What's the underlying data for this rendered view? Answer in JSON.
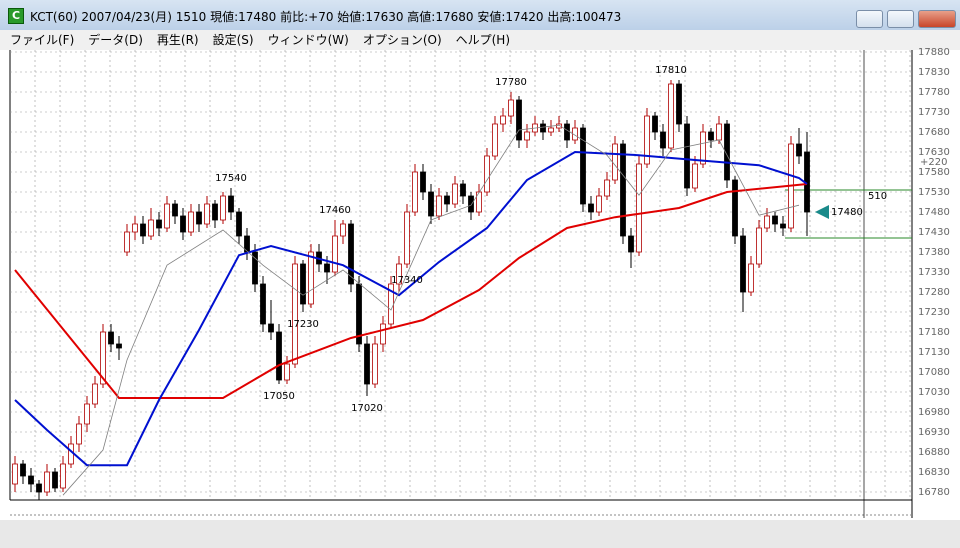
{
  "window": {
    "title": "KCT(60) 2007/04/23(月) 1510 現値:17480 前比:+70 始値:17630 高値:17680 安値:17420 出高:100473",
    "menu": [
      "ファイル(F)",
      "データ(D)",
      "再生(R)",
      "設定(S)",
      "ウィンドウ(W)",
      "オプション(O)",
      "ヘルプ(H)"
    ]
  },
  "chart_data": {
    "type": "candlestick",
    "up_color": "#b00000",
    "down_color": "#000000",
    "candles": [
      [
        16800,
        16870,
        16780,
        16850
      ],
      [
        16850,
        16860,
        16800,
        16820
      ],
      [
        16820,
        16840,
        16780,
        16800
      ],
      [
        16800,
        16810,
        16760,
        16780
      ],
      [
        16780,
        16850,
        16770,
        16830
      ],
      [
        16830,
        16840,
        16780,
        16790
      ],
      [
        16790,
        16870,
        16780,
        16850
      ],
      [
        16850,
        16920,
        16840,
        16900
      ],
      [
        16900,
        16970,
        16880,
        16950
      ],
      [
        16950,
        17020,
        16930,
        17000
      ],
      [
        17000,
        17070,
        16990,
        17050
      ],
      [
        17050,
        17200,
        17040,
        17180
      ],
      [
        17180,
        17200,
        17130,
        17150
      ],
      [
        17150,
        17170,
        17110,
        17140
      ],
      [
        17380,
        17450,
        17370,
        17430
      ],
      [
        17430,
        17470,
        17410,
        17450
      ],
      [
        17450,
        17470,
        17400,
        17420
      ],
      [
        17420,
        17490,
        17410,
        17460
      ],
      [
        17460,
        17480,
        17420,
        17440
      ],
      [
        17440,
        17520,
        17430,
        17500
      ],
      [
        17500,
        17510,
        17450,
        17470
      ],
      [
        17470,
        17490,
        17410,
        17430
      ],
      [
        17430,
        17500,
        17420,
        17480
      ],
      [
        17480,
        17500,
        17430,
        17450
      ],
      [
        17450,
        17520,
        17440,
        17500
      ],
      [
        17500,
        17510,
        17440,
        17460
      ],
      [
        17460,
        17530,
        17450,
        17520
      ],
      [
        17520,
        17540,
        17460,
        17480
      ],
      [
        17480,
        17490,
        17400,
        17420
      ],
      [
        17420,
        17440,
        17360,
        17380
      ],
      [
        17380,
        17400,
        17280,
        17300
      ],
      [
        17300,
        17320,
        17180,
        17200
      ],
      [
        17200,
        17260,
        17160,
        17180
      ],
      [
        17180,
        17200,
        17050,
        17060
      ],
      [
        17060,
        17120,
        17050,
        17100
      ],
      [
        17100,
        17370,
        17090,
        17350
      ],
      [
        17350,
        17360,
        17230,
        17250
      ],
      [
        17250,
        17400,
        17240,
        17380
      ],
      [
        17380,
        17400,
        17330,
        17350
      ],
      [
        17350,
        17370,
        17300,
        17330
      ],
      [
        17330,
        17460,
        17320,
        17420
      ],
      [
        17420,
        17460,
        17400,
        17450
      ],
      [
        17450,
        17460,
        17280,
        17300
      ],
      [
        17300,
        17320,
        17130,
        17150
      ],
      [
        17150,
        17170,
        17020,
        17050
      ],
      [
        17050,
        17170,
        17040,
        17150
      ],
      [
        17150,
        17220,
        17130,
        17200
      ],
      [
        17200,
        17320,
        17190,
        17300
      ],
      [
        17300,
        17370,
        17280,
        17350
      ],
      [
        17350,
        17500,
        17340,
        17480
      ],
      [
        17480,
        17600,
        17470,
        17580
      ],
      [
        17580,
        17600,
        17510,
        17530
      ],
      [
        17530,
        17550,
        17450,
        17470
      ],
      [
        17470,
        17540,
        17460,
        17520
      ],
      [
        17520,
        17530,
        17480,
        17500
      ],
      [
        17500,
        17570,
        17490,
        17550
      ],
      [
        17550,
        17560,
        17500,
        17520
      ],
      [
        17520,
        17530,
        17460,
        17480
      ],
      [
        17480,
        17550,
        17470,
        17530
      ],
      [
        17530,
        17640,
        17520,
        17620
      ],
      [
        17620,
        17720,
        17610,
        17700
      ],
      [
        17700,
        17740,
        17680,
        17720
      ],
      [
        17720,
        17780,
        17700,
        17760
      ],
      [
        17760,
        17770,
        17640,
        17660
      ],
      [
        17660,
        17700,
        17640,
        17680
      ],
      [
        17680,
        17720,
        17670,
        17700
      ],
      [
        17700,
        17710,
        17660,
        17680
      ],
      [
        17680,
        17710,
        17670,
        17690
      ],
      [
        17690,
        17720,
        17680,
        17700
      ],
      [
        17700,
        17710,
        17640,
        17660
      ],
      [
        17660,
        17710,
        17650,
        17690
      ],
      [
        17690,
        17700,
        17480,
        17500
      ],
      [
        17500,
        17520,
        17460,
        17480
      ],
      [
        17480,
        17540,
        17470,
        17520
      ],
      [
        17520,
        17580,
        17510,
        17560
      ],
      [
        17560,
        17670,
        17550,
        17650
      ],
      [
        17650,
        17660,
        17400,
        17420
      ],
      [
        17420,
        17440,
        17340,
        17380
      ],
      [
        17380,
        17620,
        17370,
        17600
      ],
      [
        17600,
        17740,
        17590,
        17720
      ],
      [
        17720,
        17730,
        17660,
        17680
      ],
      [
        17680,
        17700,
        17620,
        17640
      ],
      [
        17640,
        17810,
        17630,
        17800
      ],
      [
        17800,
        17810,
        17680,
        17700
      ],
      [
        17700,
        17720,
        17520,
        17540
      ],
      [
        17540,
        17620,
        17530,
        17600
      ],
      [
        17600,
        17700,
        17590,
        17680
      ],
      [
        17680,
        17690,
        17640,
        17660
      ],
      [
        17660,
        17720,
        17650,
        17700
      ],
      [
        17700,
        17710,
        17540,
        17560
      ],
      [
        17560,
        17570,
        17400,
        17420
      ],
      [
        17420,
        17440,
        17230,
        17280
      ],
      [
        17280,
        17370,
        17270,
        17350
      ],
      [
        17350,
        17460,
        17340,
        17440
      ],
      [
        17440,
        17490,
        17430,
        17470
      ],
      [
        17470,
        17480,
        17430,
        17450
      ],
      [
        17450,
        17470,
        17420,
        17440
      ],
      [
        17440,
        17670,
        17430,
        17650
      ],
      [
        17650,
        17690,
        17600,
        17620
      ],
      [
        17630,
        17680,
        17420,
        17480
      ]
    ],
    "lines": [
      {
        "color": "#e00000",
        "x": [
          0,
          13,
          26,
          33,
          42,
          51,
          58,
          63,
          69,
          75,
          83,
          89,
          99
        ],
        "values": [
          17335,
          17015,
          17015,
          17097,
          17165,
          17210,
          17285,
          17365,
          17440,
          17467,
          17490,
          17530,
          17550
        ]
      },
      {
        "color": "#0010d0",
        "x": [
          0,
          4,
          9,
          14,
          18,
          23,
          28,
          32,
          41,
          48,
          53,
          59,
          64,
          70,
          78,
          85,
          93,
          98,
          99
        ],
        "values": [
          17010,
          16935,
          16847,
          16847,
          17010,
          17185,
          17372,
          17395,
          17347,
          17272,
          17355,
          17440,
          17560,
          17630,
          17622,
          17610,
          17597,
          17565,
          17550
        ]
      },
      {
        "color": "#808080",
        "x": [
          6,
          11,
          14,
          19,
          26,
          31,
          36,
          41,
          47,
          52,
          57,
          63,
          68,
          74,
          78,
          82,
          88,
          93,
          98
        ],
        "values": [
          16772,
          16885,
          17110,
          17347,
          17435,
          17347,
          17272,
          17335,
          17235,
          17460,
          17497,
          17685,
          17697,
          17622,
          17522,
          17635,
          17660,
          17472,
          17497
        ]
      }
    ],
    "peak_labels": [
      17540,
      17460,
      17780,
      17810
    ],
    "trough_labels": [
      17050,
      17020,
      17340,
      17230
    ],
    "cursor_label": "510",
    "offset_label": "+220",
    "ylim": [
      16760,
      17885
    ],
    "yticks": [
      17880,
      17830,
      17780,
      17730,
      17680,
      17630,
      17580,
      17530,
      17480,
      17430,
      17380,
      17330,
      17280,
      17230,
      17180,
      17130,
      17080,
      17030,
      16980,
      16930,
      16880,
      16830,
      16780
    ],
    "grid": true
  }
}
